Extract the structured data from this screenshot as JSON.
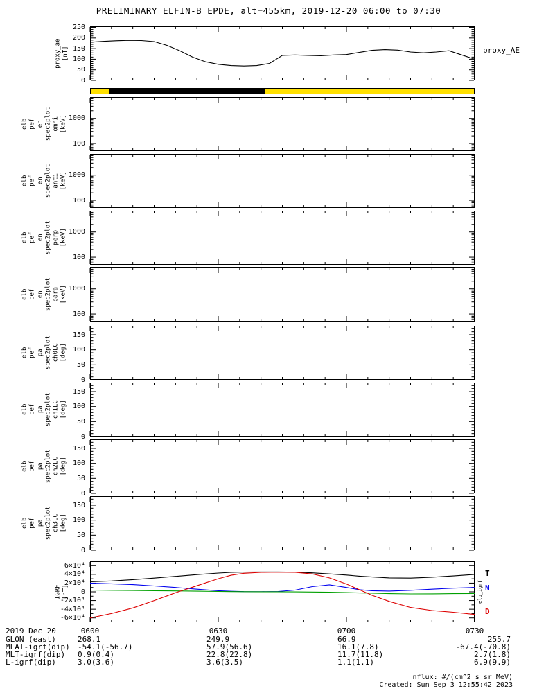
{
  "title": "PRELIMINARY ELFIN-B EPDE, alt=455km, 2019-12-20 06:00 to 07:30",
  "stamp": "elb_igrf",
  "notes": {
    "nflux": "nflux: #/(cm^2 s sr MeV)",
    "created": "Created: Sun Sep  3 12:55:42 2023"
  },
  "footer": {
    "rows": [
      {
        "label": "2019 Dec 20",
        "cols": [
          "0600",
          "0630",
          "0700",
          "0730"
        ]
      },
      {
        "label": "GLON (east)",
        "cols": [
          "268.1",
          "249.9",
          "66.9",
          "255.7"
        ]
      },
      {
        "label": "MLAT-igrf(dip)",
        "cols": [
          "-54.1(-56.7)",
          "57.9(56.6)",
          "16.1(7.8)",
          "-67.4(-70.8)"
        ]
      },
      {
        "label": "MLT-igrf(dip)",
        "cols": [
          "0.9(0.4)",
          "22.8(22.8)",
          "11.7(11.8)",
          "2.7(1.8)"
        ]
      },
      {
        "label": "L-igrf(dip)",
        "cols": [
          "3.0(3.6)",
          "3.6(3.5)",
          "1.1(1.1)",
          "6.9(9.9)"
        ]
      }
    ]
  },
  "chart_data": [
    {
      "id": "proxy_ae",
      "type": "line",
      "ylabel": "proxy_ae\n[nT]",
      "right_label": "proxy_AE",
      "xlim": [
        0,
        90
      ],
      "ylim": [
        0,
        255
      ],
      "yminor": 10,
      "yticks": [
        {
          "v": 0,
          "l": "0"
        },
        {
          "v": 50,
          "l": "50"
        },
        {
          "v": 100,
          "l": "100"
        },
        {
          "v": 150,
          "l": "150"
        },
        {
          "v": 200,
          "l": "200"
        },
        {
          "v": 250,
          "l": "250"
        }
      ],
      "series": [
        {
          "name": "proxy_AE",
          "color": "#000000",
          "x": [
            0,
            3,
            6,
            9,
            12,
            15,
            18,
            21,
            24,
            27,
            30,
            33,
            36,
            39,
            42,
            45,
            48,
            51,
            54,
            57,
            60,
            63,
            66,
            69,
            72,
            75,
            78,
            81,
            84,
            87,
            90
          ],
          "y": [
            180,
            184,
            187,
            189,
            188,
            183,
            165,
            140,
            110,
            88,
            76,
            70,
            68,
            70,
            80,
            118,
            120,
            118,
            116,
            120,
            122,
            132,
            142,
            145,
            143,
            134,
            130,
            134,
            140,
            120,
            100
          ]
        }
      ]
    },
    {
      "id": "pos_bar",
      "type": "segments",
      "xlim": [
        0,
        90
      ],
      "noticks": true,
      "segments": [
        {
          "x0": 0,
          "x1": 4.5,
          "color": "#ffe000",
          "name": "yellow"
        },
        {
          "x0": 4.5,
          "x1": 41,
          "color": "#000000",
          "name": "black"
        },
        {
          "x0": 41,
          "x1": 90,
          "color": "#ffe000",
          "name": "yellow"
        }
      ]
    },
    {
      "id": "en_omni",
      "type": "spectrogram-empty",
      "yscale": "log",
      "ylabel": "elb\npef\nen\nspec2plot\nomni\n[keV]",
      "xlim": [
        0,
        90
      ],
      "ylim": [
        50,
        7000
      ],
      "yticks": [
        {
          "v": 100,
          "l": "100"
        },
        {
          "v": 1000,
          "l": "1000"
        }
      ]
    },
    {
      "id": "en_anti",
      "type": "spectrogram-empty",
      "yscale": "log",
      "ylabel": "elb\npef\nen\nspec2plot\nanti\n[keV]",
      "xlim": [
        0,
        90
      ],
      "ylim": [
        50,
        7000
      ],
      "yticks": [
        {
          "v": 100,
          "l": "100"
        },
        {
          "v": 1000,
          "l": "1000"
        }
      ]
    },
    {
      "id": "en_perp",
      "type": "spectrogram-empty",
      "yscale": "log",
      "ylabel": "elb\npef\nen\nspec2plot\nperp\n[keV]",
      "xlim": [
        0,
        90
      ],
      "ylim": [
        50,
        7000
      ],
      "yticks": [
        {
          "v": 100,
          "l": "100"
        },
        {
          "v": 1000,
          "l": "1000"
        }
      ]
    },
    {
      "id": "en_para",
      "type": "spectrogram-empty",
      "yscale": "log",
      "ylabel": "elb\npef\nen\nspec2plot\npara\n[keV]",
      "xlim": [
        0,
        90
      ],
      "ylim": [
        50,
        7000
      ],
      "yticks": [
        {
          "v": 100,
          "l": "100"
        },
        {
          "v": 1000,
          "l": "1000"
        }
      ]
    },
    {
      "id": "pa_ch0",
      "type": "spectrogram-empty",
      "ylabel": "elb\npef\npa\nspec2plot\nch0LC\n[deg]",
      "xlim": [
        0,
        90
      ],
      "ylim": [
        0,
        180
      ],
      "yminor": 10,
      "yticks": [
        {
          "v": 0,
          "l": "0"
        },
        {
          "v": 50,
          "l": "50"
        },
        {
          "v": 100,
          "l": "100"
        },
        {
          "v": 150,
          "l": "150"
        }
      ]
    },
    {
      "id": "pa_ch1",
      "type": "spectrogram-empty",
      "ylabel": "elb\npef\npa\nspec2plot\nch1LC\n[deg]",
      "xlim": [
        0,
        90
      ],
      "ylim": [
        0,
        180
      ],
      "yminor": 10,
      "yticks": [
        {
          "v": 0,
          "l": "0"
        },
        {
          "v": 50,
          "l": "50"
        },
        {
          "v": 100,
          "l": "100"
        },
        {
          "v": 150,
          "l": "150"
        }
      ]
    },
    {
      "id": "pa_ch2",
      "type": "spectrogram-empty",
      "ylabel": "elb\npef\npa\nspec2plot\nch2LC\n[deg]",
      "xlim": [
        0,
        90
      ],
      "ylim": [
        0,
        180
      ],
      "yminor": 10,
      "yticks": [
        {
          "v": 0,
          "l": "0"
        },
        {
          "v": 50,
          "l": "50"
        },
        {
          "v": 100,
          "l": "100"
        },
        {
          "v": 150,
          "l": "150"
        }
      ]
    },
    {
      "id": "pa_ch3",
      "type": "spectrogram-empty",
      "ylabel": "elb\npef\npa\nspec2plot\nch3LC\n[deg]",
      "xlim": [
        0,
        90
      ],
      "ylim": [
        0,
        180
      ],
      "yminor": 10,
      "yticks": [
        {
          "v": 0,
          "l": "0"
        },
        {
          "v": 50,
          "l": "50"
        },
        {
          "v": 100,
          "l": "100"
        },
        {
          "v": 150,
          "l": "150"
        }
      ]
    },
    {
      "id": "igrf",
      "type": "line",
      "ylabel": "IGRF\n[nT]",
      "xlim": [
        0,
        90
      ],
      "ylim": [
        -70000,
        70000
      ],
      "yminor": 10000,
      "yticks": [
        {
          "v": 60000,
          "l": "6×10⁴"
        },
        {
          "v": 40000,
          "l": "4×10⁴"
        },
        {
          "v": 20000,
          "l": "2×10⁴"
        },
        {
          "v": 0,
          "l": "0"
        },
        {
          "v": -20000,
          "l": "-2×10⁴"
        },
        {
          "v": -40000,
          "l": "-4×10⁴"
        },
        {
          "v": -60000,
          "l": "-6×10⁴"
        }
      ],
      "right_labels": [
        {
          "t": "T",
          "color": "#000000"
        },
        {
          "t": "N",
          "color": "#0000ee"
        },
        {
          "t": "D",
          "color": "#dd0000"
        }
      ],
      "series": [
        {
          "name": "T",
          "color": "#000000",
          "x": [
            0,
            5,
            10,
            15,
            20,
            25,
            30,
            33,
            36,
            40,
            44,
            48,
            52,
            56,
            60,
            63,
            66,
            70,
            75,
            80,
            85,
            90
          ],
          "y": [
            23000,
            25000,
            28000,
            31500,
            35500,
            39500,
            43000,
            44500,
            45200,
            45500,
            45500,
            45000,
            43500,
            41000,
            38500,
            36000,
            34000,
            32000,
            31500,
            33500,
            36500,
            40000
          ]
        },
        {
          "name": "N",
          "color": "#0000ee",
          "x": [
            0,
            5,
            10,
            15,
            20,
            25,
            30,
            33,
            36,
            40,
            44,
            48,
            52,
            56,
            60,
            63,
            66,
            70,
            75,
            80,
            85,
            90
          ],
          "y": [
            20000,
            18500,
            16500,
            13500,
            10000,
            6000,
            2500,
            1200,
            500,
            300,
            800,
            4000,
            12000,
            16000,
            10000,
            5000,
            2500,
            1800,
            3500,
            6000,
            8500,
            10000
          ]
        },
        {
          "name": "E",
          "color": "#00a000",
          "x": [
            0,
            5,
            10,
            15,
            20,
            25,
            30,
            33,
            36,
            40,
            44,
            48,
            52,
            56,
            60,
            63,
            66,
            70,
            75,
            80,
            85,
            90
          ],
          "y": [
            4000,
            3500,
            3000,
            2500,
            2000,
            1500,
            800,
            500,
            300,
            200,
            100,
            -100,
            -400,
            -900,
            -1800,
            -2500,
            -3200,
            -4200,
            -4800,
            -4600,
            -4200,
            -3800
          ]
        },
        {
          "name": "D",
          "color": "#dd0000",
          "x": [
            0,
            5,
            10,
            15,
            20,
            25,
            30,
            33,
            36,
            40,
            44,
            48,
            52,
            56,
            60,
            63,
            66,
            70,
            75,
            80,
            85,
            90
          ],
          "y": [
            -60000,
            -50000,
            -37000,
            -20000,
            -2000,
            14000,
            30000,
            38000,
            42500,
            44500,
            45000,
            44500,
            41000,
            32000,
            18000,
            5000,
            -8000,
            -22000,
            -36000,
            -43000,
            -47000,
            -52000
          ]
        }
      ]
    }
  ]
}
